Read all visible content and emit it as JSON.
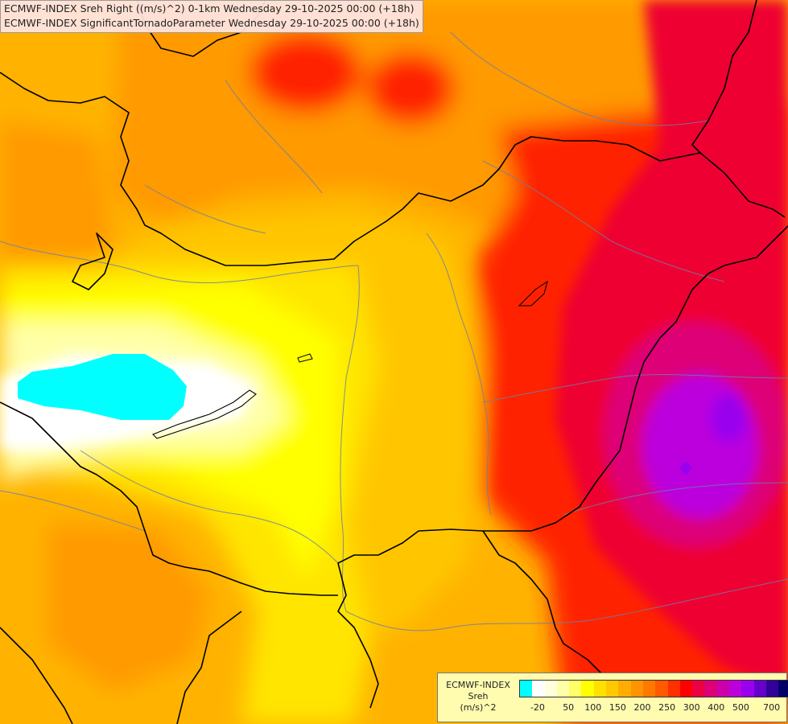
{
  "header": {
    "line1": "ECMWF-INDEX Sreh Right ((m/s)^2) 0-1km Wednesday 29-10-2025 00:00 (+18h)",
    "line2": "ECMWF-INDEX SignificantTornadoParameter Wednesday 29-10-2025 00:00 (+18h)"
  },
  "legend": {
    "title_line1": "ECMWF-INDEX",
    "title_line2": "Sreh",
    "title_line3": "(m/s)^2",
    "colors": [
      "#00ffff",
      "#ffffff",
      "#ffffdd",
      "#ffffaa",
      "#ffff66",
      "#ffff00",
      "#ffe000",
      "#ffc800",
      "#ffad00",
      "#ff9500",
      "#ff7800",
      "#ff5a00",
      "#ff3000",
      "#ff0000",
      "#ee0044",
      "#dd0077",
      "#cc00aa",
      "#bb00dd",
      "#9900ee",
      "#6600cc",
      "#330099",
      "#000066"
    ],
    "labels": [
      "-20",
      "50",
      "100",
      "150",
      "200",
      "250",
      "300",
      "400",
      "500",
      "700"
    ]
  },
  "map": {
    "fields": {
      "sea": "#ff7400",
      "orange": "#ff9a00",
      "light_orange": "#ffb300",
      "yellow_orange": "#ffc600",
      "yellow": "#ffe500",
      "bright_yellow": "#ffff00",
      "pale_yellow": "#ffffaa",
      "white": "#ffffff",
      "cyan": "#00ffff",
      "red": "#ff2000",
      "crimson": "#ee0033",
      "magenta": "#dd0077",
      "purple": "#bb00dd",
      "violet": "#9900ee"
    }
  }
}
